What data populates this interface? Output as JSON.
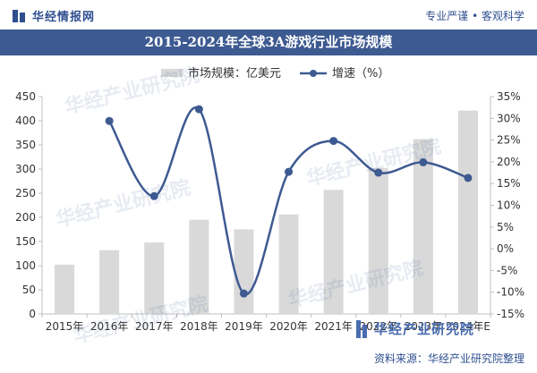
{
  "header": {
    "brand": "华经情报网",
    "slogan": "专业严谨 • 客观科学",
    "watermark": "华经产业研究院",
    "watermark_url": "www.huaon.com"
  },
  "footer": {
    "logo_text": "华经产业研究院",
    "source": "资料来源：华经产业研究院整理"
  },
  "colors": {
    "bar": "#d9d9d9",
    "line": "#3d5a91",
    "title_bar": "#3d5a91"
  },
  "chart_data": {
    "type": "bar",
    "title": "2015-2024年全球3A游戏行业市场规模",
    "categories": [
      "2015年",
      "2016年",
      "2017年",
      "2018年",
      "2019年",
      "2020年",
      "2021年",
      "2022年",
      "2023年",
      "2024年E"
    ],
    "series": [
      {
        "name": "市场规模：亿美元",
        "type": "bar",
        "axis": "left",
        "values": [
          102,
          132,
          148,
          195,
          175,
          206,
          257,
          302,
          362,
          421
        ]
      },
      {
        "name": "增速（%）",
        "type": "line",
        "axis": "right",
        "values": [
          null,
          29.4,
          12.1,
          32.1,
          -10.3,
          17.7,
          24.8,
          17.5,
          19.9,
          16.3
        ]
      }
    ],
    "y_left": {
      "min": 0,
      "max": 450,
      "ticks": [
        "0",
        "50",
        "100",
        "150",
        "200",
        "250",
        "300",
        "350",
        "400",
        "450"
      ]
    },
    "y_right": {
      "min": -15,
      "max": 35,
      "ticks": [
        "-15%",
        "-10%",
        "-5%",
        "0%",
        "5%",
        "10%",
        "15%",
        "20%",
        "25%",
        "30%",
        "35%"
      ]
    },
    "grid": false,
    "legend_position": "top-center"
  }
}
